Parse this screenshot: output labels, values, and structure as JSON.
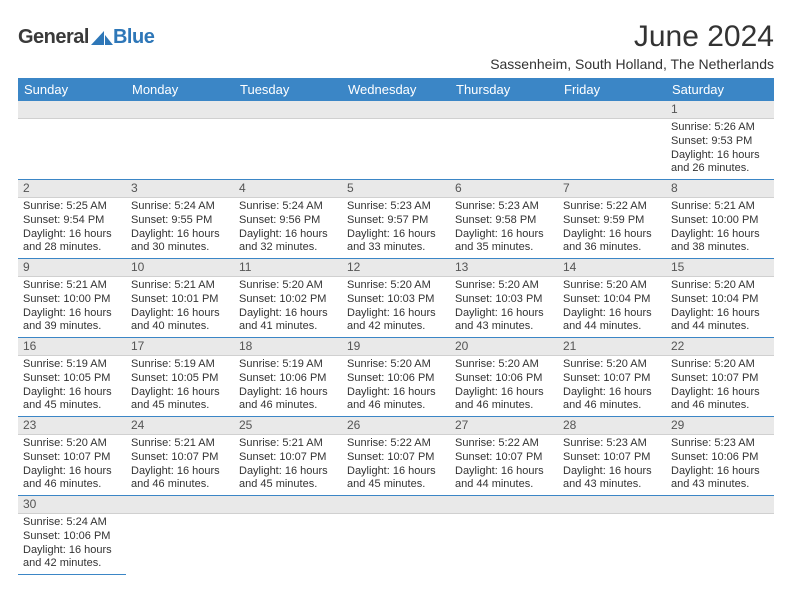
{
  "brand": {
    "part1": "General",
    "part2": "Blue"
  },
  "title": "June 2024",
  "subtitle": "Sassenheim, South Holland, The Netherlands",
  "colors": {
    "header_bg": "#3b86c6",
    "header_text": "#ffffff",
    "daynum_bg": "#e9e9e9",
    "cell_border": "#3b86c6",
    "brand_blue": "#2e77b8",
    "text": "#333333",
    "page_bg": "#ffffff"
  },
  "weekdays": [
    "Sunday",
    "Monday",
    "Tuesday",
    "Wednesday",
    "Thursday",
    "Friday",
    "Saturday"
  ],
  "weeks": [
    [
      null,
      null,
      null,
      null,
      null,
      null,
      {
        "n": "1",
        "sunrise": "Sunrise: 5:26 AM",
        "sunset": "Sunset: 9:53 PM",
        "dl1": "Daylight: 16 hours",
        "dl2": "and 26 minutes."
      }
    ],
    [
      {
        "n": "2",
        "sunrise": "Sunrise: 5:25 AM",
        "sunset": "Sunset: 9:54 PM",
        "dl1": "Daylight: 16 hours",
        "dl2": "and 28 minutes."
      },
      {
        "n": "3",
        "sunrise": "Sunrise: 5:24 AM",
        "sunset": "Sunset: 9:55 PM",
        "dl1": "Daylight: 16 hours",
        "dl2": "and 30 minutes."
      },
      {
        "n": "4",
        "sunrise": "Sunrise: 5:24 AM",
        "sunset": "Sunset: 9:56 PM",
        "dl1": "Daylight: 16 hours",
        "dl2": "and 32 minutes."
      },
      {
        "n": "5",
        "sunrise": "Sunrise: 5:23 AM",
        "sunset": "Sunset: 9:57 PM",
        "dl1": "Daylight: 16 hours",
        "dl2": "and 33 minutes."
      },
      {
        "n": "6",
        "sunrise": "Sunrise: 5:23 AM",
        "sunset": "Sunset: 9:58 PM",
        "dl1": "Daylight: 16 hours",
        "dl2": "and 35 minutes."
      },
      {
        "n": "7",
        "sunrise": "Sunrise: 5:22 AM",
        "sunset": "Sunset: 9:59 PM",
        "dl1": "Daylight: 16 hours",
        "dl2": "and 36 minutes."
      },
      {
        "n": "8",
        "sunrise": "Sunrise: 5:21 AM",
        "sunset": "Sunset: 10:00 PM",
        "dl1": "Daylight: 16 hours",
        "dl2": "and 38 minutes."
      }
    ],
    [
      {
        "n": "9",
        "sunrise": "Sunrise: 5:21 AM",
        "sunset": "Sunset: 10:00 PM",
        "dl1": "Daylight: 16 hours",
        "dl2": "and 39 minutes."
      },
      {
        "n": "10",
        "sunrise": "Sunrise: 5:21 AM",
        "sunset": "Sunset: 10:01 PM",
        "dl1": "Daylight: 16 hours",
        "dl2": "and 40 minutes."
      },
      {
        "n": "11",
        "sunrise": "Sunrise: 5:20 AM",
        "sunset": "Sunset: 10:02 PM",
        "dl1": "Daylight: 16 hours",
        "dl2": "and 41 minutes."
      },
      {
        "n": "12",
        "sunrise": "Sunrise: 5:20 AM",
        "sunset": "Sunset: 10:03 PM",
        "dl1": "Daylight: 16 hours",
        "dl2": "and 42 minutes."
      },
      {
        "n": "13",
        "sunrise": "Sunrise: 5:20 AM",
        "sunset": "Sunset: 10:03 PM",
        "dl1": "Daylight: 16 hours",
        "dl2": "and 43 minutes."
      },
      {
        "n": "14",
        "sunrise": "Sunrise: 5:20 AM",
        "sunset": "Sunset: 10:04 PM",
        "dl1": "Daylight: 16 hours",
        "dl2": "and 44 minutes."
      },
      {
        "n": "15",
        "sunrise": "Sunrise: 5:20 AM",
        "sunset": "Sunset: 10:04 PM",
        "dl1": "Daylight: 16 hours",
        "dl2": "and 44 minutes."
      }
    ],
    [
      {
        "n": "16",
        "sunrise": "Sunrise: 5:19 AM",
        "sunset": "Sunset: 10:05 PM",
        "dl1": "Daylight: 16 hours",
        "dl2": "and 45 minutes."
      },
      {
        "n": "17",
        "sunrise": "Sunrise: 5:19 AM",
        "sunset": "Sunset: 10:05 PM",
        "dl1": "Daylight: 16 hours",
        "dl2": "and 45 minutes."
      },
      {
        "n": "18",
        "sunrise": "Sunrise: 5:19 AM",
        "sunset": "Sunset: 10:06 PM",
        "dl1": "Daylight: 16 hours",
        "dl2": "and 46 minutes."
      },
      {
        "n": "19",
        "sunrise": "Sunrise: 5:20 AM",
        "sunset": "Sunset: 10:06 PM",
        "dl1": "Daylight: 16 hours",
        "dl2": "and 46 minutes."
      },
      {
        "n": "20",
        "sunrise": "Sunrise: 5:20 AM",
        "sunset": "Sunset: 10:06 PM",
        "dl1": "Daylight: 16 hours",
        "dl2": "and 46 minutes."
      },
      {
        "n": "21",
        "sunrise": "Sunrise: 5:20 AM",
        "sunset": "Sunset: 10:07 PM",
        "dl1": "Daylight: 16 hours",
        "dl2": "and 46 minutes."
      },
      {
        "n": "22",
        "sunrise": "Sunrise: 5:20 AM",
        "sunset": "Sunset: 10:07 PM",
        "dl1": "Daylight: 16 hours",
        "dl2": "and 46 minutes."
      }
    ],
    [
      {
        "n": "23",
        "sunrise": "Sunrise: 5:20 AM",
        "sunset": "Sunset: 10:07 PM",
        "dl1": "Daylight: 16 hours",
        "dl2": "and 46 minutes."
      },
      {
        "n": "24",
        "sunrise": "Sunrise: 5:21 AM",
        "sunset": "Sunset: 10:07 PM",
        "dl1": "Daylight: 16 hours",
        "dl2": "and 46 minutes."
      },
      {
        "n": "25",
        "sunrise": "Sunrise: 5:21 AM",
        "sunset": "Sunset: 10:07 PM",
        "dl1": "Daylight: 16 hours",
        "dl2": "and 45 minutes."
      },
      {
        "n": "26",
        "sunrise": "Sunrise: 5:22 AM",
        "sunset": "Sunset: 10:07 PM",
        "dl1": "Daylight: 16 hours",
        "dl2": "and 45 minutes."
      },
      {
        "n": "27",
        "sunrise": "Sunrise: 5:22 AM",
        "sunset": "Sunset: 10:07 PM",
        "dl1": "Daylight: 16 hours",
        "dl2": "and 44 minutes."
      },
      {
        "n": "28",
        "sunrise": "Sunrise: 5:23 AM",
        "sunset": "Sunset: 10:07 PM",
        "dl1": "Daylight: 16 hours",
        "dl2": "and 43 minutes."
      },
      {
        "n": "29",
        "sunrise": "Sunrise: 5:23 AM",
        "sunset": "Sunset: 10:06 PM",
        "dl1": "Daylight: 16 hours",
        "dl2": "and 43 minutes."
      }
    ],
    [
      {
        "n": "30",
        "sunrise": "Sunrise: 5:24 AM",
        "sunset": "Sunset: 10:06 PM",
        "dl1": "Daylight: 16 hours",
        "dl2": "and 42 minutes."
      },
      null,
      null,
      null,
      null,
      null,
      null
    ]
  ]
}
